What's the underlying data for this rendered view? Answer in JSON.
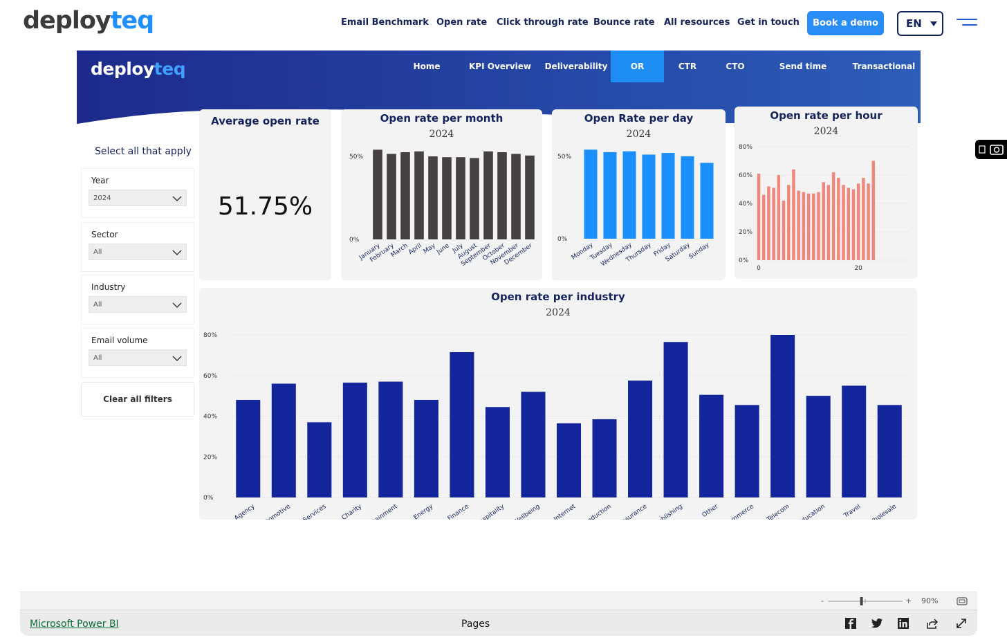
{
  "site": {
    "logo_part1": "deploy",
    "logo_part2": "teq",
    "nav": [
      "Email Benchmark",
      "Open rate",
      "Click through rate",
      "Bounce rate",
      "All resources",
      "Get in touch"
    ],
    "demo_label": "Book a demo",
    "lang_label": "EN"
  },
  "report": {
    "logo_part1": "deploy",
    "logo_part2": "teq",
    "tabs": [
      "Home",
      "KPI Overview",
      "Deliverability",
      "OR",
      "CTR",
      "CTO",
      "Send time",
      "Transactional"
    ],
    "active_tab": "OR",
    "colors": {
      "banner_dark": "#1d2a8c",
      "banner_light": "#2c5db8",
      "active_tab": "#1e8ef5"
    }
  },
  "filters": {
    "title": "Select all that apply",
    "slicers": [
      {
        "label": "Year",
        "value": "2024"
      },
      {
        "label": "Sector",
        "value": "All"
      },
      {
        "label": "Industry",
        "value": "All"
      },
      {
        "label": "Email volume",
        "value": "All"
      }
    ],
    "clear_label": "Clear all filters"
  },
  "kpi": {
    "title": "Average open rate",
    "value": "51.75%"
  },
  "chart_data": [
    {
      "type": "bar",
      "title": "Open rate per month",
      "subtitle": "2024",
      "color": "#463f43",
      "categories": [
        "January",
        "February",
        "March",
        "April",
        "May",
        "June",
        "July",
        "August",
        "September",
        "October",
        "November",
        "December"
      ],
      "values": [
        54,
        51.5,
        52.5,
        53,
        50,
        49.5,
        49.5,
        49,
        53,
        52.5,
        51.5,
        50.5
      ],
      "ylim": [
        0,
        60
      ],
      "yticks": [
        0,
        50
      ],
      "ytick_labels": [
        "0%",
        "50%"
      ]
    },
    {
      "type": "bar",
      "title": "Open Rate per day",
      "subtitle": "2024",
      "color": "#1a8ffa",
      "categories": [
        "Monday",
        "Tuesday",
        "Wednesday",
        "Thursday",
        "Friday",
        "Saturday",
        "Sunday"
      ],
      "values": [
        54,
        52.5,
        53,
        51,
        52,
        50,
        46
      ],
      "ylim": [
        0,
        60
      ],
      "yticks": [
        0,
        50
      ],
      "ytick_labels": [
        "0%",
        "50%"
      ]
    },
    {
      "type": "bar",
      "title": "Open rate per hour",
      "subtitle": "2024",
      "color": "#f0877c",
      "x": [
        0,
        1,
        2,
        3,
        4,
        5,
        6,
        7,
        8,
        9,
        10,
        11,
        12,
        13,
        14,
        15,
        16,
        17,
        18,
        19,
        20,
        21,
        22,
        23,
        24
      ],
      "values": [
        61,
        46,
        52,
        51,
        60,
        42,
        53,
        64,
        49,
        48,
        47,
        47,
        48,
        55,
        53,
        62,
        58,
        53,
        51,
        50,
        54,
        58,
        54,
        70,
        0
      ],
      "ylim": [
        0,
        80
      ],
      "yticks": [
        0,
        20,
        40,
        60,
        80
      ],
      "ytick_labels": [
        "0%",
        "20%",
        "40%",
        "60%",
        "80%"
      ],
      "xtick_labels": [
        "0",
        "20"
      ]
    },
    {
      "type": "bar",
      "title": "Open rate per industry",
      "subtitle": "2024",
      "color": "#13259a",
      "categories": [
        "Agency",
        "Automotive",
        "Business Services",
        "Charity",
        "Culture & Entertainment",
        "Energy",
        "Finance",
        "Food & Hospitality",
        "Health & Wellbeing",
        "ICT & Internet",
        "Industrial & Production",
        "Insurance",
        "Media & Publishing",
        "Other",
        "Retail & E-commerce",
        "Telecom",
        "Training & Education",
        "Travel",
        "Wholesale"
      ],
      "values": [
        48,
        56,
        37,
        56.5,
        57,
        48,
        71.5,
        44.5,
        52,
        36.5,
        38.5,
        57.5,
        76.5,
        50.5,
        45.5,
        80,
        50,
        55,
        45.5
      ],
      "ylim": [
        0,
        80
      ],
      "yticks": [
        0,
        20,
        40,
        60,
        80
      ],
      "ytick_labels": [
        "0%",
        "20%",
        "40%",
        "60%",
        "80%"
      ]
    }
  ],
  "footer": {
    "zoom_minus": "-",
    "zoom_plus": "+",
    "zoom_level": "90%",
    "zoom_fraction": 0.45,
    "powerbi_link": "Microsoft Power BI",
    "pages_label": "Pages",
    "icons": [
      "facebook-icon",
      "twitter-icon",
      "linkedin-icon",
      "share-icon",
      "expand-icon"
    ]
  }
}
